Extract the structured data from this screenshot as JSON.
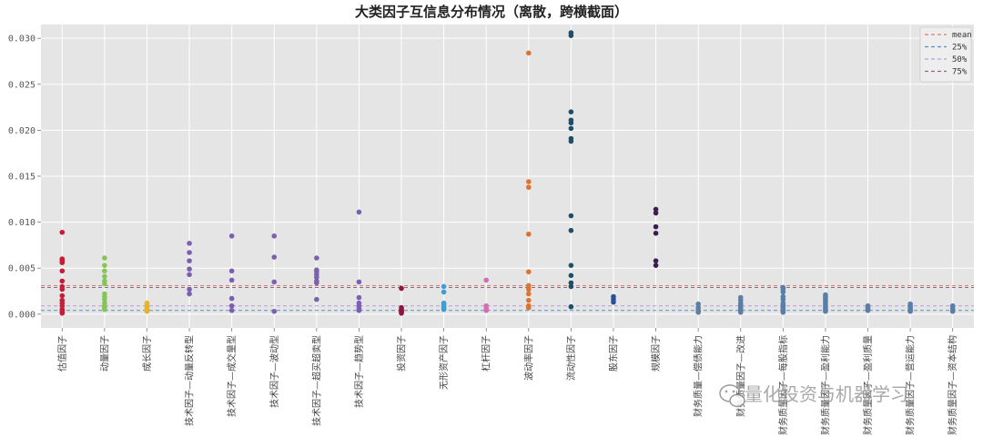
{
  "chart_data": {
    "type": "scatter",
    "title": "大类因子互信息分布情况（离散，跨横截面）",
    "xlabel": "",
    "ylabel": "",
    "ylim": [
      -0.0015,
      0.0315
    ],
    "yticks": [
      "0.000",
      "0.005",
      "0.010",
      "0.015",
      "0.020",
      "0.025",
      "0.030"
    ],
    "ytick_values": [
      0,
      0.005,
      0.01,
      0.015,
      0.02,
      0.025,
      0.03
    ],
    "grid": true,
    "legend_position": "top-right",
    "categories": [
      "估值因子",
      "动量因子",
      "成长因子",
      "技术因子—动量反转型",
      "技术因子—成交量型",
      "技术因子—波动型",
      "技术因子—超买超卖型",
      "技术因子—趋势型",
      "投资因子",
      "无形资产因子",
      "杠杆因子",
      "波动率因子",
      "流动性因子",
      "股东因子",
      "规模因子",
      "财务质量—偿债能力",
      "财务质量因子—改进",
      "财务质量因子—每股指标",
      "财务质量因子—盈利能力",
      "财务质量因子—盈利质量",
      "财务质量因子—营运能力",
      "财务质量因子—资本结构"
    ],
    "colors": [
      "#c0203a",
      "#86c45a",
      "#e8b424",
      "#7b60b0",
      "#7b60b0",
      "#7b60b0",
      "#7b60b0",
      "#7b60b0",
      "#8c1740",
      "#3aa0d8",
      "#d070b0",
      "#d97434",
      "#1c4f6a",
      "#28509c",
      "#3a1e4e",
      "#5b7ea6",
      "#5b7ea6",
      "#5b7ea6",
      "#5b7ea6",
      "#5b7ea6",
      "#5b7ea6",
      "#5b7ea6"
    ],
    "values": [
      [
        0.0089,
        0.006,
        0.0058,
        0.0056,
        0.0047,
        0.0036,
        0.003,
        0.0027,
        0.002,
        0.0015,
        0.0012,
        0.0009,
        0.0005,
        0.0003,
        0.0001
      ],
      [
        0.0061,
        0.0053,
        0.0047,
        0.0041,
        0.0036,
        0.0033,
        0.0022,
        0.0019,
        0.0016,
        0.0012,
        0.0009,
        0.0007,
        0.0005
      ],
      [
        0.0012,
        0.001,
        0.0008,
        0.0006,
        0.0005,
        0.0004,
        0.0003
      ],
      [
        0.0077,
        0.0067,
        0.0058,
        0.0049,
        0.0043,
        0.0027,
        0.0022
      ],
      [
        0.0085,
        0.0047,
        0.0037,
        0.0017,
        0.0009,
        0.0004
      ],
      [
        0.0085,
        0.0062,
        0.0035,
        0.0003
      ],
      [
        0.0061,
        0.0048,
        0.0046,
        0.0043,
        0.004,
        0.0036,
        0.0034,
        0.0016
      ],
      [
        0.0111,
        0.0035,
        0.0018,
        0.0012,
        0.0009,
        0.0006,
        0.0004
      ],
      [
        0.0028,
        0.0007,
        0.0005,
        0.0004,
        0.0003,
        0.0002,
        0.0001
      ],
      [
        0.003,
        0.0024,
        0.0012,
        0.001,
        0.0008,
        0.0006,
        0.0005
      ],
      [
        0.0037,
        0.0009,
        0.0006,
        0.0004
      ],
      [
        0.0284,
        0.0144,
        0.0138,
        0.0087,
        0.0046,
        0.0031,
        0.0027,
        0.0022,
        0.0015,
        0.0009,
        0.0007
      ],
      [
        0.0306,
        0.0303,
        0.022,
        0.0211,
        0.0208,
        0.0202,
        0.0191,
        0.0188,
        0.0107,
        0.0091,
        0.0053,
        0.0042,
        0.0034,
        0.003,
        0.0008
      ],
      [
        0.0019,
        0.0016,
        0.0013
      ],
      [
        0.0114,
        0.011,
        0.0095,
        0.0088,
        0.0058,
        0.0053
      ],
      [
        0.0011,
        0.0007,
        0.0004,
        0.0002
      ],
      [
        0.0018,
        0.0015,
        0.0012,
        0.001,
        0.0008,
        0.0006,
        0.0004,
        0.0002
      ],
      [
        0.0029,
        0.0027,
        0.0024,
        0.0019,
        0.0016,
        0.0012,
        0.001,
        0.0008,
        0.0006,
        0.0004,
        0.0002
      ],
      [
        0.0021,
        0.0019,
        0.0017,
        0.0015,
        0.0013,
        0.0011,
        0.0009,
        0.0007,
        0.0005,
        0.0003
      ],
      [
        0.0009,
        0.0007,
        0.0005,
        0.0004
      ],
      [
        0.0011,
        0.0009,
        0.0007,
        0.0005,
        0.0004,
        0.0003
      ],
      [
        0.0009,
        0.0006,
        0.0003
      ]
    ],
    "reference_lines": [
      {
        "name": "mean",
        "value": 0.0031,
        "color": "#e27777",
        "dash": "dashed"
      },
      {
        "name": "25%",
        "value": 0.0004,
        "color": "#5b8fc9",
        "dash": "dashed"
      },
      {
        "name": "50%",
        "value": 0.0009,
        "color": "#b99bd6",
        "dash": "dashed"
      },
      {
        "name": "75%",
        "value": 0.0029,
        "color": "#8a6a8a",
        "dash": "dashed"
      }
    ]
  },
  "watermark": {
    "text": "量化投资与机器学习",
    "icon": "wechat-icon"
  }
}
